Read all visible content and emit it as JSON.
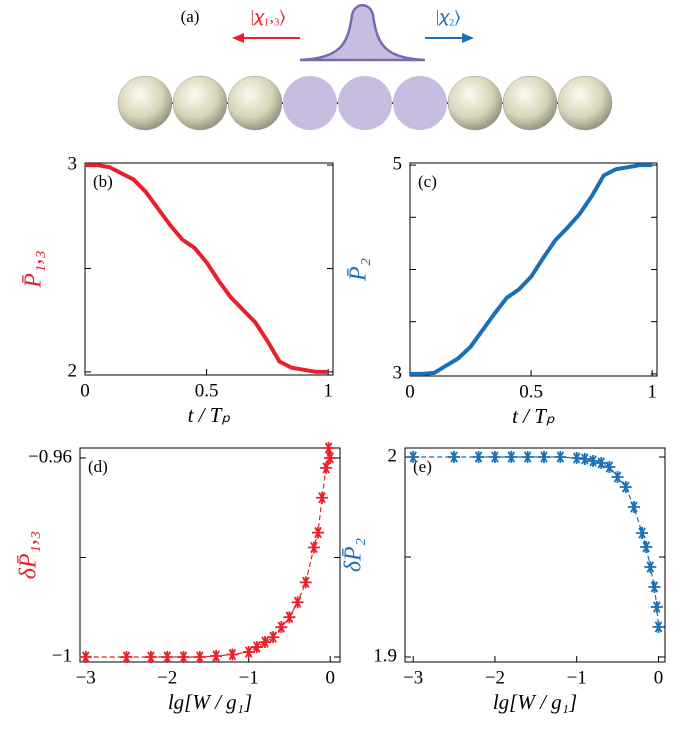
{
  "diagram": {
    "label": "(a)",
    "left_state": "|𝜒₁,₃⟩",
    "right_state": "|𝜒₂⟩"
  },
  "chart_data": [
    {
      "type": "line",
      "label": "(b)",
      "color": "#e8202a",
      "ylabel": "P̄₁,₃",
      "xlabel": "t / Tₚ",
      "x": [
        0,
        0.05,
        0.1,
        0.15,
        0.2,
        0.25,
        0.3,
        0.35,
        0.4,
        0.45,
        0.5,
        0.55,
        0.6,
        0.65,
        0.7,
        0.75,
        0.8,
        0.85,
        0.9,
        0.95,
        1.0
      ],
      "values": [
        3,
        3,
        2.99,
        2.96,
        2.93,
        2.87,
        2.79,
        2.71,
        2.64,
        2.6,
        2.53,
        2.44,
        2.36,
        2.3,
        2.24,
        2.15,
        2.05,
        2.02,
        2.01,
        2.0,
        2.0
      ],
      "xlim": [
        0,
        1.02
      ],
      "ylim": [
        1.985,
        3.01
      ],
      "xticks": [
        0,
        0.5,
        1
      ],
      "yticks": [
        2,
        3
      ],
      "minor_yticks": [
        2.5
      ]
    },
    {
      "type": "line",
      "label": "(c)",
      "color": "#1a6fb5",
      "ylabel": "P̄₂",
      "xlabel": "t / Tₚ",
      "x": [
        0,
        0.05,
        0.1,
        0.15,
        0.2,
        0.25,
        0.3,
        0.35,
        0.4,
        0.45,
        0.5,
        0.55,
        0.6,
        0.65,
        0.7,
        0.75,
        0.8,
        0.85,
        0.9,
        0.95,
        1.0
      ],
      "values": [
        3,
        3,
        3.01,
        3.08,
        3.15,
        3.26,
        3.42,
        3.58,
        3.73,
        3.81,
        3.93,
        4.11,
        4.28,
        4.4,
        4.53,
        4.7,
        4.9,
        4.96,
        4.98,
        5,
        5
      ],
      "xlim": [
        0,
        1.02
      ],
      "ylim": [
        2.98,
        5.02
      ],
      "xticks": [
        0,
        0.5,
        1
      ],
      "yticks": [
        3,
        5
      ],
      "minor_yticks": [
        3.5,
        4,
        4.5
      ]
    },
    {
      "type": "scatter",
      "label": "(d)",
      "color": "#e8202a",
      "ylabel": "δP̄₁,₃",
      "xlabel": "lg[W / g₁]",
      "x": [
        -3,
        -2.5,
        -2.2,
        -2,
        -1.8,
        -1.6,
        -1.4,
        -1.2,
        -1.0,
        -0.9,
        -0.8,
        -0.7,
        -0.6,
        -0.5,
        -0.4,
        -0.3,
        -0.2,
        -0.15,
        -0.1,
        -0.05,
        -0.02,
        0
      ],
      "values": [
        -1,
        -1,
        -1,
        -1,
        -1,
        -1,
        -0.9998,
        -0.9995,
        -0.999,
        -0.998,
        -0.997,
        -0.996,
        -0.994,
        -0.992,
        -0.989,
        -0.985,
        -0.978,
        -0.975,
        -0.968,
        -0.962,
        -0.958,
        -0.96
      ],
      "xlim": [
        -3.07,
        0.12
      ],
      "ylim": [
        -1.001,
        -0.958
      ],
      "xticks": [
        {
          "value": -3,
          "label": "−3"
        },
        {
          "value": -2,
          "label": "−2"
        },
        {
          "value": -1,
          "label": "−1"
        },
        0
      ],
      "yticks": [
        {
          "value": -1,
          "label": "−1"
        },
        {
          "value": -0.96,
          "label": "−0.96"
        }
      ],
      "minor_yticks": [
        -0.98
      ]
    },
    {
      "type": "scatter",
      "label": "(e)",
      "color": "#1a6fb5",
      "ylabel": "δP̄₂",
      "xlabel": "lg[W / g₁]",
      "x": [
        -3,
        -2.5,
        -2.2,
        -2,
        -1.8,
        -1.6,
        -1.4,
        -1.2,
        -1.0,
        -0.9,
        -0.8,
        -0.7,
        -0.6,
        -0.5,
        -0.4,
        -0.3,
        -0.2,
        -0.15,
        -0.1,
        -0.05,
        -0.02,
        0
      ],
      "values": [
        2,
        2,
        2,
        2,
        2,
        2,
        2,
        2,
        1.9995,
        1.999,
        1.998,
        1.997,
        1.995,
        1.99,
        1.985,
        1.975,
        1.962,
        1.955,
        1.945,
        1.935,
        1.925,
        1.915
      ],
      "xlim": [
        -3.1,
        0.08
      ],
      "ylim": [
        1.8975,
        2.0045
      ],
      "xticks": [
        {
          "value": -3,
          "label": "−3"
        },
        {
          "value": -2,
          "label": "−2"
        },
        {
          "value": -1,
          "label": "−1"
        },
        0
      ],
      "yticks": [
        {
          "value": 1.9,
          "label": "1.9"
        },
        2
      ],
      "minor_yticks": [
        1.95
      ]
    }
  ]
}
